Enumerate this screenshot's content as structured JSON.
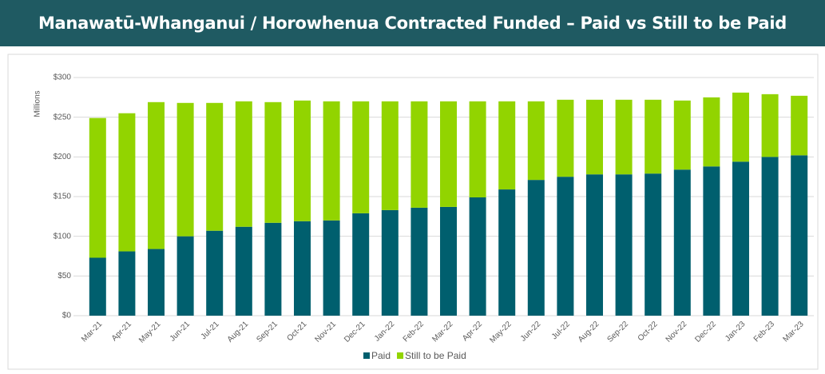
{
  "chart_data": {
    "type": "stacked_bar",
    "title": "Manawatū-Whanganui / Horowhenua Contracted Funded – Paid vs Still to be Paid",
    "y_label": "Millions",
    "categories": [
      "Mar-21",
      "Apr-21",
      "May-21",
      "Jun-21",
      "Jul-21",
      "Aug-21",
      "Sep-21",
      "Oct-21",
      "Nov-21",
      "Dec-21",
      "Jan-22",
      "Feb-22",
      "Mar-22",
      "Apr-22",
      "May-22",
      "Jun-22",
      "Jul-22",
      "Aug-22",
      "Sep-22",
      "Oct-22",
      "Nov-22",
      "Dec-22",
      "Jan-23",
      "Feb-23",
      "Mar-23"
    ],
    "series": [
      {
        "name": "Paid",
        "color": "#005f6e",
        "values": [
          73,
          81,
          84,
          100,
          107,
          112,
          117,
          119,
          120,
          129,
          133,
          136,
          137,
          149,
          159,
          171,
          175,
          178,
          178,
          179,
          184,
          188,
          194,
          200,
          202
        ]
      },
      {
        "name": "Still to be Paid",
        "color": "#92d400",
        "values": [
          176,
          174,
          185,
          168,
          161,
          158,
          152,
          152,
          150,
          141,
          137,
          134,
          133,
          121,
          111,
          99,
          97,
          94,
          94,
          93,
          87,
          87,
          87,
          79,
          75
        ]
      }
    ],
    "ylim": [
      0,
      300
    ],
    "yticks": [
      {
        "value": 0,
        "label": "$0"
      },
      {
        "value": 50,
        "label": "$50"
      },
      {
        "value": 100,
        "label": "$100"
      },
      {
        "value": 150,
        "label": "$150"
      },
      {
        "value": 200,
        "label": "$200"
      },
      {
        "value": 250,
        "label": "$250"
      },
      {
        "value": 300,
        "label": "$300"
      }
    ],
    "grid": true,
    "legend": "bottom"
  }
}
